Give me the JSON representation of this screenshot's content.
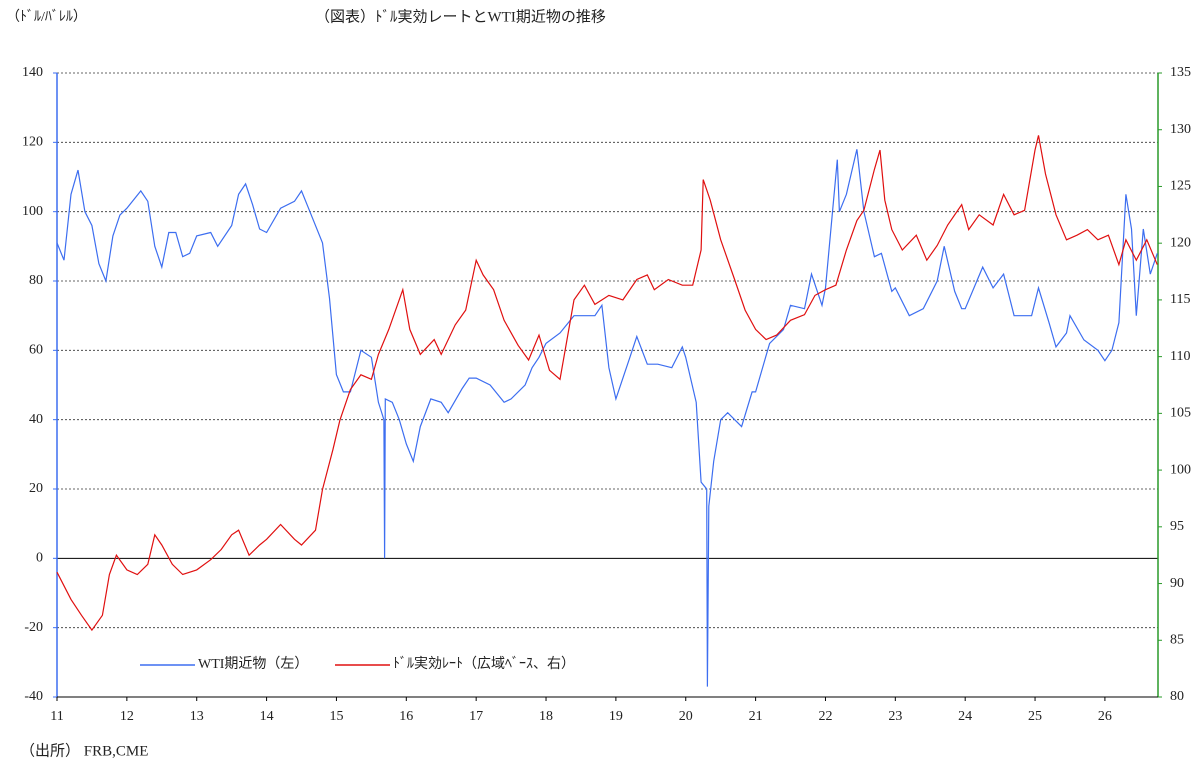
{
  "chart_data": {
    "type": "line",
    "title": "（図表）ﾄﾞﾙ実効レートとWTI期近物の推移",
    "y_label": "（ﾄﾞﾙ/ﾊﾞﾚﾙ）",
    "source": "（出所） FRB,CME",
    "xlim": [
      2011,
      2026.76
    ],
    "xticks": [
      {
        "value": 2011,
        "label": "11"
      },
      {
        "value": 2012,
        "label": "12"
      },
      {
        "value": 2013,
        "label": "13"
      },
      {
        "value": 2014,
        "label": "14"
      },
      {
        "value": 2015,
        "label": "15"
      },
      {
        "value": 2016,
        "label": "16"
      },
      {
        "value": 2017,
        "label": "17"
      },
      {
        "value": 2018,
        "label": "18"
      },
      {
        "value": 2019,
        "label": "19"
      },
      {
        "value": 2020,
        "label": "20"
      },
      {
        "value": 2021,
        "label": "21"
      },
      {
        "value": 2022,
        "label": "22"
      },
      {
        "value": 2023,
        "label": "23"
      },
      {
        "value": 2024,
        "label": "24"
      },
      {
        "value": 2025,
        "label": "25"
      },
      {
        "value": 2026,
        "label": "26"
      }
    ],
    "ylim": [
      -40,
      140
    ],
    "yticks": [
      -40,
      -20,
      0,
      20,
      40,
      60,
      80,
      100,
      120,
      140
    ],
    "y2lim": [
      80,
      135
    ],
    "y2ticks": [
      80,
      85,
      90,
      95,
      100,
      105,
      110,
      115,
      120,
      125,
      130,
      135
    ],
    "grid": true,
    "legend": "lower left",
    "series": [
      {
        "name": "WTI期近物（左）",
        "color": "#3d6ef0",
        "x": [
          2011.0,
          2011.1,
          2011.2,
          2011.3,
          2011.4,
          2011.5,
          2011.6,
          2011.7,
          2011.8,
          2011.9,
          2012.0,
          2012.2,
          2012.3,
          2012.4,
          2012.5,
          2012.6,
          2012.7,
          2012.8,
          2012.9,
          2013.0,
          2013.2,
          2013.3,
          2013.5,
          2013.6,
          2013.7,
          2013.8,
          2013.9,
          2014.0,
          2014.2,
          2014.4,
          2014.5,
          2014.6,
          2014.8,
          2014.9,
          2015.0,
          2015.1,
          2015.2,
          2015.35,
          2015.5,
          2015.6,
          2015.68,
          2015.69,
          2015.7,
          2015.8,
          2015.9,
          2016.0,
          2016.1,
          2016.2,
          2016.35,
          2016.5,
          2016.6,
          2016.8,
          2016.9,
          2017.0,
          2017.2,
          2017.4,
          2017.5,
          2017.7,
          2017.8,
          2017.9,
          2018.0,
          2018.2,
          2018.4,
          2018.5,
          2018.7,
          2018.8,
          2018.9,
          2019.0,
          2019.2,
          2019.3,
          2019.45,
          2019.6,
          2019.8,
          2019.95,
          2020.0,
          2020.15,
          2020.22,
          2020.3,
          2020.31,
          2020.33,
          2020.4,
          2020.5,
          2020.6,
          2020.8,
          2020.95,
          2021.0,
          2021.2,
          2021.4,
          2021.5,
          2021.7,
          2021.8,
          2021.95,
          2022.0,
          2022.17,
          2022.2,
          2022.3,
          2022.45,
          2022.55,
          2022.7,
          2022.8,
          2022.95,
          2023.0,
          2023.2,
          2023.4,
          2023.6,
          2023.7,
          2023.85,
          2023.95,
          2024.0,
          2024.25,
          2024.4,
          2024.55,
          2024.7,
          2024.95,
          2025.05,
          2025.2,
          2025.3,
          2025.45,
          2025.5,
          2025.7,
          2025.9,
          2026.0,
          2026.1,
          2026.2,
          2026.3,
          2026.38,
          2026.45,
          2026.55,
          2026.65,
          2026.75
        ],
        "values": [
          91,
          86,
          105,
          112,
          100,
          96,
          85,
          80,
          93,
          99,
          101,
          106,
          103,
          90,
          84,
          94,
          94,
          87,
          88,
          93,
          94,
          90,
          96,
          105,
          108,
          102,
          95,
          94,
          101,
          103,
          106,
          101,
          91,
          75,
          53,
          48,
          48,
          60,
          58,
          45,
          40,
          0,
          46,
          45,
          40,
          33,
          28,
          38,
          46,
          45,
          42,
          49,
          52,
          52,
          50,
          45,
          46,
          50,
          55,
          58,
          62,
          65,
          70,
          70,
          70,
          73,
          55,
          46,
          58,
          64,
          56,
          56,
          55,
          61,
          58,
          45,
          22,
          20,
          -37,
          15,
          28,
          40,
          42,
          38,
          48,
          48,
          62,
          66,
          73,
          72,
          82,
          73,
          78,
          115,
          100,
          105,
          118,
          100,
          87,
          88,
          77,
          78,
          70,
          72,
          80,
          90,
          77,
          72,
          72,
          84,
          78,
          82,
          70,
          70,
          78,
          68,
          61,
          65,
          70,
          63,
          60,
          57,
          60,
          68,
          105,
          95,
          70,
          95,
          82,
          88
        ]
      },
      {
        "name": "ﾄﾞﾙ実効ﾚｰﾄ（広域ﾍﾞｰｽ、右）",
        "color": "#e01010",
        "axis": "y2",
        "x": [
          2011.0,
          2011.2,
          2011.35,
          2011.5,
          2011.65,
          2011.75,
          2011.85,
          2012.0,
          2012.15,
          2012.3,
          2012.4,
          2012.5,
          2012.65,
          2012.8,
          2013.0,
          2013.2,
          2013.35,
          2013.5,
          2013.6,
          2013.75,
          2013.9,
          2014.0,
          2014.2,
          2014.4,
          2014.5,
          2014.7,
          2014.8,
          2014.95,
          2015.05,
          2015.2,
          2015.35,
          2015.5,
          2015.6,
          2015.75,
          2015.95,
          2016.05,
          2016.2,
          2016.4,
          2016.5,
          2016.7,
          2016.85,
          2017.0,
          2017.1,
          2017.25,
          2017.4,
          2017.6,
          2017.75,
          2017.9,
          2018.05,
          2018.2,
          2018.3,
          2018.4,
          2018.55,
          2018.7,
          2018.9,
          2019.1,
          2019.3,
          2019.45,
          2019.55,
          2019.75,
          2019.95,
          2020.1,
          2020.22,
          2020.25,
          2020.35,
          2020.5,
          2020.7,
          2020.85,
          2021.0,
          2021.15,
          2021.3,
          2021.5,
          2021.7,
          2021.85,
          2022.0,
          2022.15,
          2022.3,
          2022.45,
          2022.55,
          2022.7,
          2022.78,
          2022.85,
          2022.95,
          2023.1,
          2023.3,
          2023.45,
          2023.6,
          2023.75,
          2023.95,
          2024.05,
          2024.2,
          2024.4,
          2024.55,
          2024.7,
          2024.85,
          2025.0,
          2025.05,
          2025.15,
          2025.3,
          2025.45,
          2025.6,
          2025.75,
          2025.9,
          2026.05,
          2026.2,
          2026.3,
          2026.45,
          2026.6,
          2026.75
        ],
        "values": [
          91.0,
          88.6,
          87.2,
          85.9,
          87.2,
          90.8,
          92.5,
          91.2,
          90.8,
          91.7,
          94.3,
          93.4,
          91.7,
          90.8,
          91.2,
          92.1,
          93.0,
          94.3,
          94.7,
          92.5,
          93.4,
          93.9,
          95.2,
          93.9,
          93.4,
          94.7,
          98.3,
          101.8,
          104.4,
          107.1,
          108.4,
          108.0,
          110.2,
          112.4,
          115.9,
          112.4,
          110.2,
          111.5,
          110.2,
          112.8,
          114.1,
          118.5,
          117.2,
          115.9,
          113.2,
          111.0,
          109.7,
          111.9,
          108.8,
          108.0,
          111.5,
          115.0,
          116.3,
          114.6,
          115.4,
          115.0,
          116.8,
          117.2,
          115.9,
          116.8,
          116.3,
          116.3,
          119.4,
          125.6,
          123.8,
          120.3,
          116.8,
          114.1,
          112.4,
          111.5,
          111.9,
          113.2,
          113.7,
          115.4,
          115.9,
          116.3,
          119.4,
          122.0,
          122.9,
          126.5,
          128.2,
          123.8,
          121.2,
          119.4,
          120.7,
          118.5,
          119.8,
          121.6,
          123.4,
          121.2,
          122.5,
          121.6,
          124.3,
          122.5,
          122.9,
          128.2,
          129.5,
          126.1,
          122.5,
          120.3,
          120.7,
          121.2,
          120.3,
          120.7,
          118.1,
          120.3,
          118.5,
          120.3,
          118.1
        ]
      }
    ]
  }
}
